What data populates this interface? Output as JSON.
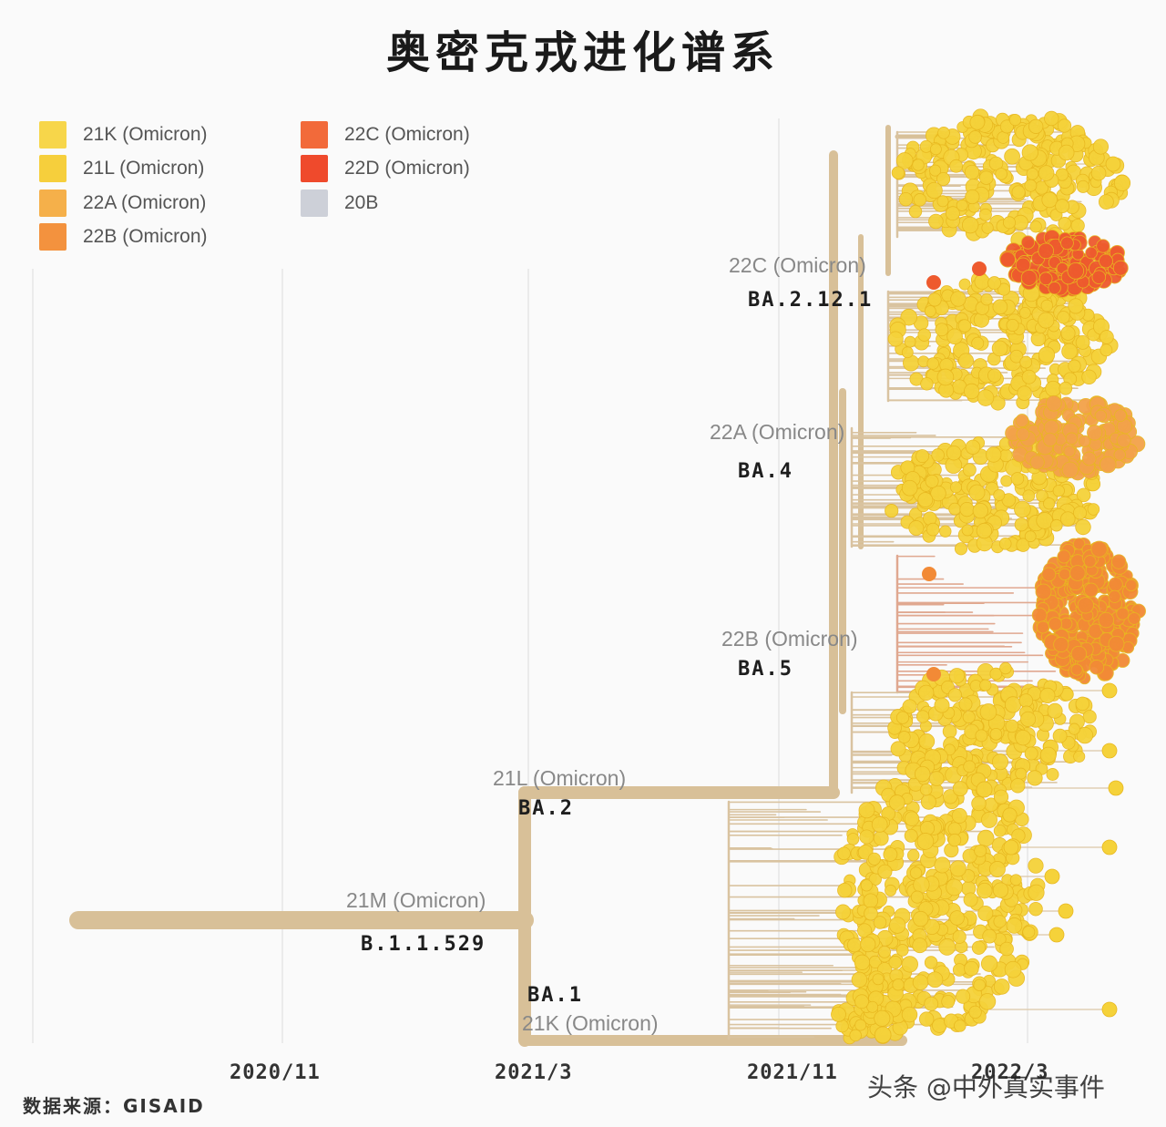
{
  "chart_data": {
    "type": "phylogenetic-tree",
    "title": "奥密克戎进化谱系",
    "x_ticks": [
      "2020/11",
      "2021/3",
      "2021/11",
      "2022/3"
    ],
    "legend": [
      {
        "label": "21K (Omicron)",
        "color": "#f7d64a"
      },
      {
        "label": "21L (Omicron)",
        "color": "#f6cf3c"
      },
      {
        "label": "22A (Omicron)",
        "color": "#f5b04a"
      },
      {
        "label": "22B (Omicron)",
        "color": "#f3923e"
      },
      {
        "label": "22C (Omicron)",
        "color": "#f26a3a"
      },
      {
        "label": "22D (Omicron)",
        "color": "#ef4a2c"
      },
      {
        "label": "20B",
        "color": "#cdd0d8"
      }
    ],
    "clades": [
      {
        "clade": "21M (Omicron)",
        "lineage": "B.1.1.529"
      },
      {
        "clade": "21L (Omicron)",
        "lineage": "BA.2"
      },
      {
        "clade": "21K (Omicron)",
        "lineage": "BA.1"
      },
      {
        "clade": "22C (Omicron)",
        "lineage": "BA.2.12.1"
      },
      {
        "clade": "22A (Omicron)",
        "lineage": "BA.4"
      },
      {
        "clade": "22B (Omicron)",
        "lineage": "BA.5"
      }
    ]
  },
  "source": "数据来源：GISAID",
  "watermark": "头条 @中外真实事件",
  "colors": {
    "branch": "#d8c098",
    "yellow": "#f5d23a",
    "orange": "#f28a36",
    "red": "#ee5a2e"
  }
}
